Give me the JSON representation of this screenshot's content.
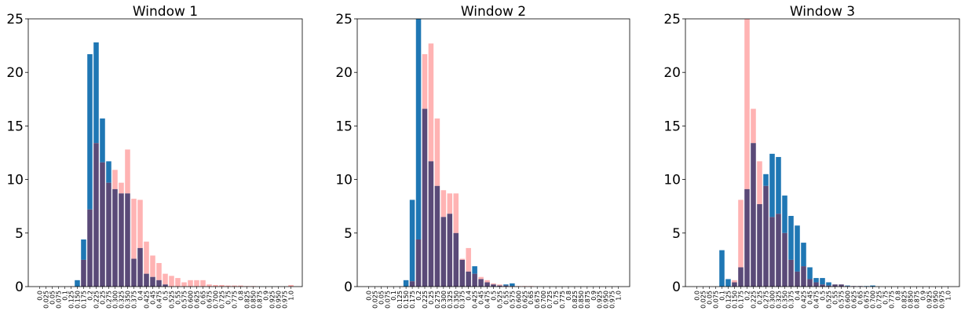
{
  "chart_data": [
    {
      "type": "bar",
      "title": "Window 1",
      "xlabel": "",
      "ylabel": "",
      "ylim": [
        0,
        25
      ],
      "yticks": [
        "0",
        "5",
        "10",
        "15",
        "20",
        "25"
      ],
      "categories": [
        "0.0",
        "0.025",
        "0.05",
        "0.075",
        "0.1",
        "0.125",
        "0.150",
        "0.175",
        "0.2",
        "0.225",
        "0.25",
        "0.275",
        "0.300",
        "0.325",
        "0.350",
        "0.375",
        "0.4",
        "0.425",
        "0.45",
        "0.475",
        "0.5",
        "0.525",
        "0.55",
        "0.575",
        "0.600",
        "0.625",
        "0.65",
        "0.675",
        "0.700",
        "0.725",
        "0.75",
        "0.775",
        "0.8",
        "0.825",
        "0.850",
        "0.875",
        "0.9",
        "0.925",
        "0.950",
        "0.975",
        "1.0"
      ],
      "series": [
        {
          "color": "#1f77b4",
          "values": [
            0,
            0,
            0,
            0,
            0,
            0,
            0.6,
            4.4,
            21.7,
            22.8,
            15.7,
            11.7,
            9.1,
            8.7,
            8.7,
            2.6,
            3.6,
            1.2,
            0.9,
            0.6,
            0.2,
            0,
            0,
            0,
            0,
            0,
            0,
            0,
            0,
            0,
            0,
            0,
            0,
            0,
            0,
            0,
            0,
            0,
            0,
            0,
            0
          ]
        },
        {
          "color": "#ffb3b3",
          "values": [
            0,
            0,
            0,
            0,
            0,
            0,
            0,
            2.5,
            7.2,
            13.4,
            11.6,
            9.7,
            10.9,
            9.7,
            12.8,
            8.2,
            8.1,
            4.2,
            2.9,
            2.2,
            1.2,
            1.0,
            0.8,
            0.4,
            0.6,
            0.6,
            0.6,
            0.2,
            0.15,
            0.15,
            0.1,
            0.1,
            0.1,
            0.05,
            0.05,
            0,
            0,
            0,
            0,
            0,
            0.15
          ]
        }
      ]
    },
    {
      "type": "bar",
      "title": "Window 2",
      "xlabel": "",
      "ylabel": "",
      "ylim": [
        0,
        25
      ],
      "yticks": [
        "0",
        "5",
        "10",
        "15",
        "20",
        "25"
      ],
      "categories": [
        "0.0",
        "0.025",
        "0.05",
        "0.075",
        "0.1",
        "0.125",
        "0.150",
        "0.175",
        "0.2",
        "0.225",
        "0.25",
        "0.275",
        "0.300",
        "0.325",
        "0.350",
        "0.375",
        "0.4",
        "0.425",
        "0.45",
        "0.475",
        "0.5",
        "0.525",
        "0.55",
        "0.575",
        "0.600",
        "0.625",
        "0.65",
        "0.675",
        "0.700",
        "0.725",
        "0.75",
        "0.775",
        "0.8",
        "0.825",
        "0.850",
        "0.875",
        "0.9",
        "0.925",
        "0.950",
        "0.975",
        "1.0"
      ],
      "series": [
        {
          "color": "#1f77b4",
          "values": [
            0,
            0,
            0,
            0,
            0,
            0,
            0.6,
            8.1,
            25.0,
            16.6,
            11.7,
            9.4,
            6.5,
            6.8,
            5.0,
            2.5,
            1.4,
            1.9,
            0.7,
            0.4,
            0.2,
            0.1,
            0.2,
            0.3,
            0,
            0,
            0,
            0,
            0,
            0,
            0,
            0,
            0,
            0,
            0,
            0,
            0,
            0,
            0,
            0,
            0
          ]
        },
        {
          "color": "#ffb3b3",
          "values": [
            0,
            0,
            0,
            0,
            0,
            0,
            0,
            0.5,
            4.4,
            21.7,
            22.7,
            15.7,
            9.0,
            8.7,
            8.7,
            2.6,
            3.6,
            1.2,
            0.9,
            0.6,
            0.3,
            0.2,
            0.1,
            0.05,
            0.05,
            0.05,
            0.05,
            0,
            0,
            0,
            0,
            0,
            0,
            0,
            0,
            0,
            0,
            0,
            0,
            0,
            0
          ]
        }
      ]
    },
    {
      "type": "bar",
      "title": "Window 3",
      "xlabel": "",
      "ylabel": "",
      "ylim": [
        0,
        25
      ],
      "yticks": [
        "0",
        "5",
        "10",
        "15",
        "20",
        "25"
      ],
      "categories": [
        "0.0",
        "0.025",
        "0.05",
        "0.075",
        "0.1",
        "0.125",
        "0.150",
        "0.175",
        "0.2",
        "0.225",
        "0.25",
        "0.275",
        "0.300",
        "0.325",
        "0.350",
        "0.375",
        "0.4",
        "0.425",
        "0.45",
        "0.475",
        "0.5",
        "0.525",
        "0.55",
        "0.575",
        "0.600",
        "0.625",
        "0.65",
        "0.675",
        "0.700",
        "0.725",
        "0.75",
        "0.775",
        "0.8",
        "0.825",
        "0.850",
        "0.875",
        "0.9",
        "0.925",
        "0.950",
        "0.975",
        "1.0"
      ],
      "series": [
        {
          "color": "#1f77b4",
          "values": [
            0,
            0,
            0,
            0,
            3.4,
            0.7,
            0.4,
            1.8,
            9.1,
            13.4,
            7.7,
            10.5,
            12.4,
            12.1,
            8.5,
            6.6,
            5.7,
            4.1,
            1.8,
            0.8,
            0.8,
            0.4,
            0.2,
            0.2,
            0.1,
            0.05,
            0.05,
            0.05,
            0.1,
            0,
            0,
            0,
            0,
            0,
            0,
            0,
            0,
            0,
            0,
            0,
            0
          ]
        },
        {
          "color": "#ffb3b3",
          "values": [
            0,
            0,
            0,
            0,
            0,
            0,
            0.6,
            8.1,
            25.0,
            16.6,
            11.7,
            9.4,
            6.5,
            6.8,
            5.0,
            2.5,
            1.4,
            1.9,
            0.7,
            0.4,
            0.2,
            0.1,
            0.2,
            0.2,
            0.05,
            0.05,
            0.05,
            0,
            0,
            0,
            0,
            0,
            0,
            0,
            0,
            0,
            0,
            0,
            0,
            0,
            0
          ]
        }
      ]
    }
  ]
}
